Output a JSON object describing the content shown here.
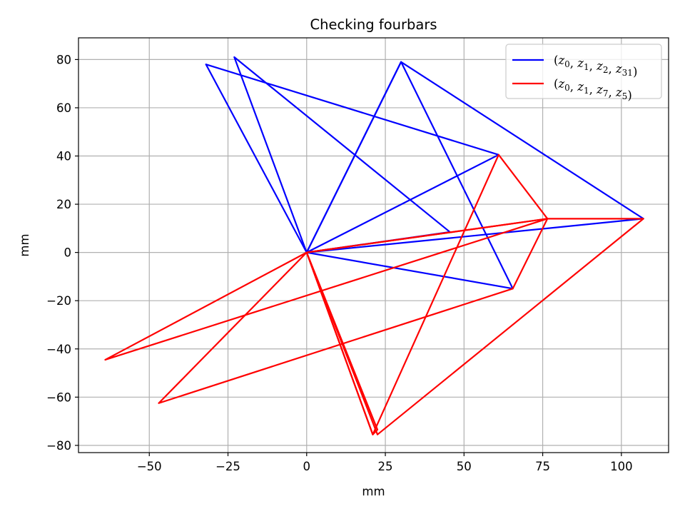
{
  "chart_data": {
    "type": "line",
    "title": "Checking fourbars",
    "xlabel": "mm",
    "ylabel": "mm",
    "xlim": [
      -72.5,
      115
    ],
    "ylim": [
      -83,
      89
    ],
    "xticks": [
      -50,
      -25,
      0,
      25,
      50,
      75,
      100
    ],
    "yticks": [
      -80,
      -60,
      -40,
      -20,
      0,
      20,
      40,
      60,
      80
    ],
    "grid": true,
    "legend_position": "top-right",
    "series": [
      {
        "name": "(z0, z1, z2, z31)",
        "name_parts": [
          [
            "(",
            null
          ],
          [
            "z",
            "0"
          ],
          [
            ", ",
            null
          ],
          [
            "z",
            "1"
          ],
          [
            ", ",
            null
          ],
          [
            "z",
            "2"
          ],
          [
            ", ",
            null
          ],
          [
            "z",
            "31"
          ],
          [
            ")",
            null
          ]
        ],
        "color": "#0000ff",
        "segments": [
          [
            [
              0,
              0
            ],
            [
              -32,
              78
            ],
            [
              61,
              40.5
            ],
            [
              0,
              0
            ]
          ],
          [
            [
              0,
              0
            ],
            [
              -23,
              81
            ],
            [
              45.5,
              8.5
            ],
            [
              0,
              0
            ]
          ],
          [
            [
              0,
              0
            ],
            [
              30,
              79
            ],
            [
              107,
              14
            ],
            [
              0,
              0
            ]
          ],
          [
            [
              0,
              0
            ],
            [
              30,
              79
            ],
            [
              65.5,
              -15
            ],
            [
              0,
              0
            ]
          ]
        ]
      },
      {
        "name": "(z0, z1, z7, z5)",
        "name_parts": [
          [
            "(",
            null
          ],
          [
            "z",
            "0"
          ],
          [
            ", ",
            null
          ],
          [
            "z",
            "1"
          ],
          [
            ", ",
            null
          ],
          [
            "z",
            "7"
          ],
          [
            ", ",
            null
          ],
          [
            "z",
            "5"
          ],
          [
            ")",
            null
          ]
        ],
        "color": "#ff0000",
        "segments": [
          [
            [
              0,
              0
            ],
            [
              -64,
              -44.5
            ],
            [
              76.5,
              14
            ],
            [
              61,
              40.5
            ],
            [
              21,
              -75.5
            ],
            [
              0,
              0
            ]
          ],
          [
            [
              0,
              0
            ],
            [
              -47,
              -62.5
            ],
            [
              65.5,
              -15
            ],
            [
              76.5,
              14
            ],
            [
              0,
              0
            ]
          ],
          [
            [
              0,
              0
            ],
            [
              21,
              -75.5
            ],
            [
              22.5,
              -73.5
            ],
            [
              0,
              0
            ]
          ],
          [
            [
              0,
              0
            ],
            [
              22.5,
              -75.5
            ],
            [
              107,
              14
            ],
            [
              76.5,
              14
            ],
            [
              0,
              0
            ]
          ]
        ]
      }
    ]
  }
}
